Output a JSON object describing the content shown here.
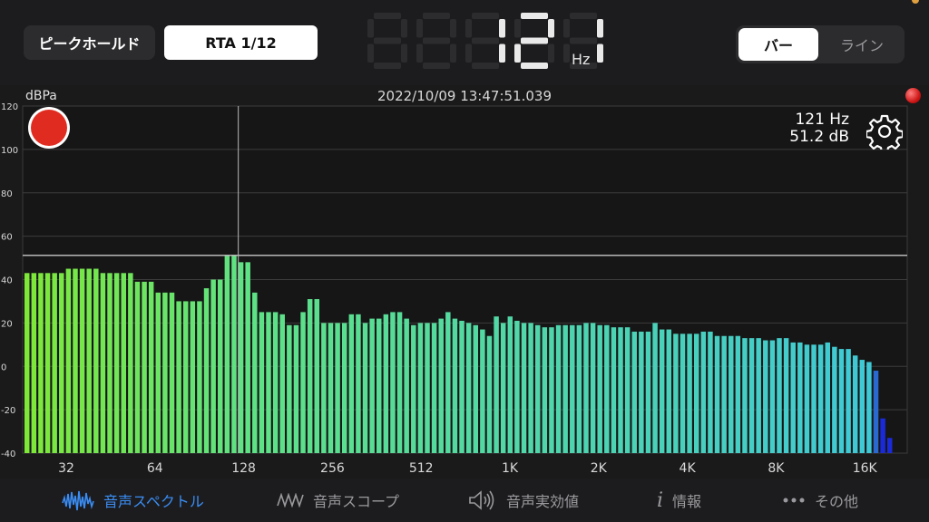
{
  "header": {
    "peak_hold_label": "ピークホールド",
    "rta_label": "RTA 1/12",
    "frequency_value": "121",
    "frequency_unit": "Hz",
    "view_mode": {
      "bar_label": "バー",
      "line_label": "ライン",
      "selected": "bar"
    }
  },
  "chart": {
    "unit_label": "dBPa",
    "timestamp": "2022/10/09 13:47:51.039",
    "cursor_frequency": "121 Hz",
    "cursor_level": "51.2 dB"
  },
  "chart_data": {
    "type": "bar",
    "x_scale": "log",
    "y_ticks": [
      "120",
      "100",
      "80",
      "60",
      "40",
      "20",
      "0",
      "-20",
      "-40"
    ],
    "x_ticks": [
      "32",
      "64",
      "128",
      "256",
      "512",
      "1K",
      "2K",
      "4K",
      "8K",
      "16K"
    ],
    "ylim": [
      -40,
      120
    ],
    "hold_line": 51.2,
    "cursor_frequency_hz": 121,
    "values": [
      43,
      43,
      43,
      43,
      43,
      43,
      45,
      45,
      45,
      45,
      45,
      43,
      43,
      43,
      43,
      43,
      39,
      39,
      39,
      34,
      34,
      34,
      30,
      30,
      30,
      30,
      36,
      40,
      40,
      51,
      51,
      48,
      48,
      34,
      25,
      25,
      25,
      24,
      19,
      19,
      25,
      31,
      31,
      20,
      20,
      20,
      20,
      24,
      24,
      20,
      22,
      22,
      24,
      25,
      25,
      22,
      19,
      20,
      20,
      20,
      22,
      25,
      22,
      21,
      20,
      19,
      17,
      14,
      23,
      20,
      23,
      21,
      20,
      20,
      19,
      18,
      18,
      19,
      19,
      19,
      19,
      20,
      20,
      19,
      19,
      18,
      18,
      18,
      16,
      16,
      16,
      20,
      17,
      17,
      15,
      15,
      15,
      15,
      16,
      16,
      14,
      14,
      14,
      14,
      13,
      13,
      13,
      12,
      12,
      13,
      13,
      11,
      11,
      10,
      10,
      10,
      11,
      9,
      8,
      8,
      5,
      3,
      2,
      -2,
      -24,
      -33
    ]
  },
  "tabs": [
    {
      "label": "音声スペクトル",
      "icon": "spectrum-icon"
    },
    {
      "label": "音声スコープ",
      "icon": "scope-icon"
    },
    {
      "label": "音声実効値",
      "icon": "speaker-icon"
    },
    {
      "label": "情報",
      "icon": "info-icon"
    },
    {
      "label": "その他",
      "icon": "more-icon"
    }
  ],
  "colors": {
    "accent": "#3a8df5",
    "record": "#e02c20",
    "bar_green": "#7ee838",
    "bar_cyan": "#3ec8d8",
    "bar_blue": "#1a2ad8"
  }
}
